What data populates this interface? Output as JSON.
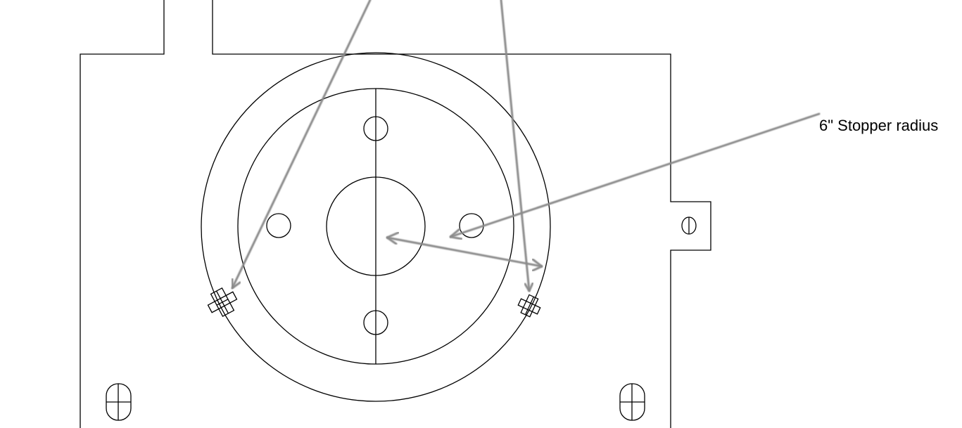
{
  "annotation": {
    "label": "6\" Stopper radius"
  },
  "colors": {
    "line": "#000000",
    "arrow": "#8a8a8a",
    "background": "#ffffff"
  }
}
